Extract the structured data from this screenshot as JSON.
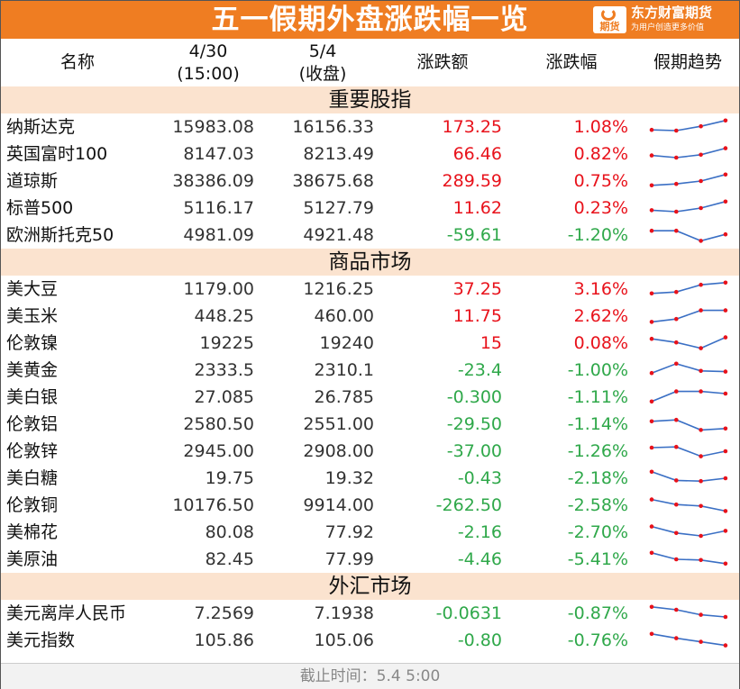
{
  "title": "五一假期外盘涨跌幅一览",
  "brand": {
    "name": "东方财富期货",
    "slogan": "为用户创造更多价值",
    "logo_text": "期货"
  },
  "headers": {
    "name": "名称",
    "col1": [
      "4/30",
      "(15:00)"
    ],
    "col2": [
      "5/4",
      "(收盘)"
    ],
    "change": "涨跌额",
    "pct": "涨跌幅",
    "trend": "假期趋势"
  },
  "colors": {
    "accent": "#ef7d22",
    "section_bg": "#fbe3cf",
    "up": "#e8121b",
    "down": "#2fa84a",
    "spark_line": "#3a6fc4",
    "spark_dot": "#e8121b"
  },
  "sections": [
    {
      "title": "重要股指",
      "rows": [
        {
          "name": "纳斯达克",
          "v1": "15983.08",
          "v2": "16156.33",
          "change": "173.25",
          "pct": "1.08%",
          "dir": "up",
          "trend": [
            0.3,
            0.25,
            0.55,
            0.95
          ]
        },
        {
          "name": "英国富时100",
          "v1": "8147.03",
          "v2": "8213.49",
          "change": "66.46",
          "pct": "0.82%",
          "dir": "up",
          "trend": [
            0.4,
            0.25,
            0.45,
            0.9
          ]
        },
        {
          "name": "道琼斯",
          "v1": "38386.09",
          "v2": "38675.68",
          "change": "289.59",
          "pct": "0.75%",
          "dir": "up",
          "trend": [
            0.2,
            0.3,
            0.5,
            0.95
          ]
        },
        {
          "name": "标普500",
          "v1": "5116.17",
          "v2": "5127.79",
          "change": "11.62",
          "pct": "0.23%",
          "dir": "up",
          "trend": [
            0.35,
            0.25,
            0.5,
            0.95
          ]
        },
        {
          "name": "欧洲斯托克50",
          "v1": "4981.09",
          "v2": "4921.48",
          "change": "-59.61",
          "pct": "-1.20%",
          "dir": "down",
          "trend": [
            0.8,
            0.8,
            0.1,
            0.55
          ]
        }
      ]
    },
    {
      "title": "商品市场",
      "rows": [
        {
          "name": "美大豆",
          "v1": "1179.00",
          "v2": "1216.25",
          "change": "37.25",
          "pct": "3.16%",
          "dir": "up",
          "trend": [
            0.2,
            0.3,
            0.8,
            0.95
          ]
        },
        {
          "name": "美玉米",
          "v1": "448.25",
          "v2": "460.00",
          "change": "11.75",
          "pct": "2.62%",
          "dir": "up",
          "trend": [
            0.1,
            0.3,
            0.9,
            0.9
          ]
        },
        {
          "name": "伦敦镍",
          "v1": "19225",
          "v2": "19240",
          "change": "15",
          "pct": "0.08%",
          "dir": "up",
          "trend": [
            0.8,
            0.55,
            0.15,
            0.9
          ]
        },
        {
          "name": "美黄金",
          "v1": "2333.5",
          "v2": "2310.1",
          "change": "-23.4",
          "pct": "-1.00%",
          "dir": "down",
          "trend": [
            0.3,
            0.95,
            0.45,
            0.4
          ]
        },
        {
          "name": "美白银",
          "v1": "27.085",
          "v2": "26.785",
          "change": "-0.300",
          "pct": "-1.11%",
          "dir": "down",
          "trend": [
            0.2,
            0.9,
            0.9,
            0.75
          ]
        },
        {
          "name": "伦敦铝",
          "v1": "2580.50",
          "v2": "2551.00",
          "change": "-29.50",
          "pct": "-1.14%",
          "dir": "down",
          "trend": [
            0.7,
            0.8,
            0.1,
            0.2
          ]
        },
        {
          "name": "伦敦锌",
          "v1": "2945.00",
          "v2": "2908.00",
          "change": "-37.00",
          "pct": "-1.26%",
          "dir": "down",
          "trend": [
            0.75,
            0.8,
            0.15,
            0.5
          ]
        },
        {
          "name": "美白糖",
          "v1": "19.75",
          "v2": "19.32",
          "change": "-0.43",
          "pct": "-2.18%",
          "dir": "down",
          "trend": [
            0.95,
            0.35,
            0.3,
            0.5
          ]
        },
        {
          "name": "伦敦铜",
          "v1": "10176.50",
          "v2": "9914.00",
          "change": "-262.50",
          "pct": "-2.58%",
          "dir": "down",
          "trend": [
            0.9,
            0.55,
            0.45,
            0.1
          ]
        },
        {
          "name": "美棉花",
          "v1": "80.08",
          "v2": "77.92",
          "change": "-2.16",
          "pct": "-2.70%",
          "dir": "down",
          "trend": [
            0.9,
            0.45,
            0.25,
            0.6
          ]
        },
        {
          "name": "美原油",
          "v1": "82.45",
          "v2": "77.99",
          "change": "-4.46",
          "pct": "-5.41%",
          "dir": "down",
          "trend": [
            0.95,
            0.5,
            0.45,
            0.2
          ]
        }
      ]
    },
    {
      "title": "外汇市场",
      "rows": [
        {
          "name": "美元离岸人民币",
          "v1": "7.2569",
          "v2": "7.1938",
          "change": "-0.0631",
          "pct": "-0.87%",
          "dir": "down",
          "trend": [
            0.95,
            0.75,
            0.4,
            0.25
          ]
        },
        {
          "name": "美元指数",
          "v1": "105.86",
          "v2": "105.06",
          "change": "-0.80",
          "pct": "-0.76%",
          "dir": "down",
          "trend": [
            0.95,
            0.65,
            0.4,
            0.15
          ]
        }
      ]
    }
  ],
  "footer": "截止时间：5.4 5:00"
}
